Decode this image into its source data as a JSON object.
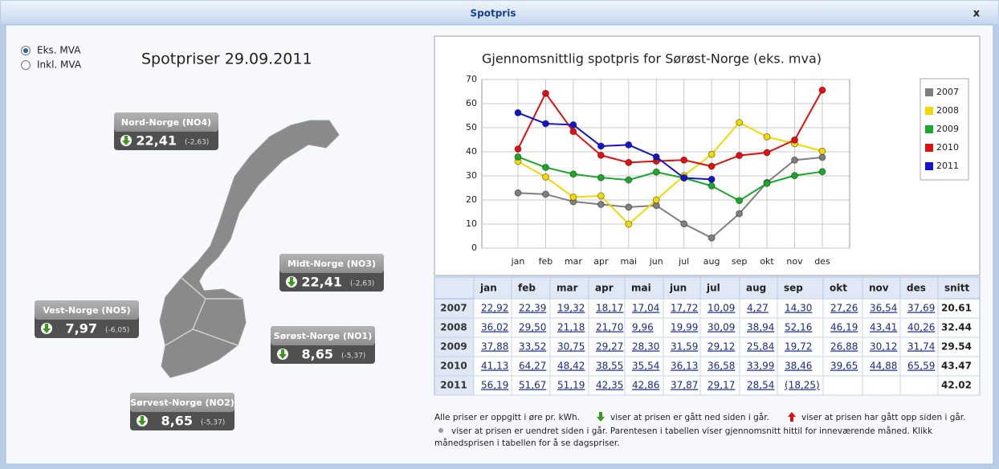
{
  "window": {
    "title": "Spotpris",
    "close": "x"
  },
  "vat_options": [
    {
      "label": "Eks. MVA",
      "selected": true
    },
    {
      "label": "Inkl. MVA",
      "selected": false
    }
  ],
  "map_title": "Spotpriser 29.09.2011",
  "regions": [
    {
      "name": "Nord-Norge (NO4)",
      "price": "22,41",
      "change": "(-2,63)",
      "trend": "down"
    },
    {
      "name": "Midt-Norge (NO3)",
      "price": "22,41",
      "change": "(-2,63)",
      "trend": "down"
    },
    {
      "name": "Vest-Norge (NO5)",
      "price": "7,97",
      "change": "(-6,05)",
      "trend": "down"
    },
    {
      "name": "Sørøst-Norge (NO1)",
      "price": "8,65",
      "change": "(-5,37)",
      "trend": "down"
    },
    {
      "name": "Sørvest-Norge (NO2)",
      "price": "8,65",
      "change": "(-5,37)",
      "trend": "down"
    }
  ],
  "chart_data": {
    "type": "line",
    "title": "Gjennomsnittlig spotpris for Sørøst-Norge (eks. mva)",
    "categories": [
      "jan",
      "feb",
      "mar",
      "apr",
      "mai",
      "jun",
      "jul",
      "aug",
      "sep",
      "okt",
      "nov",
      "des"
    ],
    "ylim": [
      0,
      70
    ],
    "yticks": [
      0,
      10,
      20,
      30,
      40,
      50,
      60,
      70
    ],
    "grid": true,
    "legend": "right",
    "series": [
      {
        "name": "2007",
        "color": "#7f7f7f",
        "values": [
          22.92,
          22.39,
          19.32,
          18.17,
          17.04,
          17.72,
          10.09,
          4.27,
          14.3,
          27.26,
          36.54,
          37.69
        ]
      },
      {
        "name": "2008",
        "color": "#f2d900",
        "values": [
          36.02,
          29.5,
          21.18,
          21.7,
          9.96,
          19.99,
          30.09,
          38.94,
          52.16,
          46.19,
          43.41,
          40.26
        ]
      },
      {
        "name": "2009",
        "color": "#1aa82a",
        "values": [
          37.88,
          33.52,
          30.75,
          29.27,
          28.3,
          31.59,
          29.12,
          25.84,
          19.72,
          26.88,
          30.12,
          31.74
        ]
      },
      {
        "name": "2010",
        "color": "#e01010",
        "values": [
          41.13,
          64.27,
          48.42,
          38.55,
          35.54,
          36.13,
          36.58,
          33.99,
          38.46,
          39.65,
          44.88,
          65.59
        ]
      },
      {
        "name": "2011",
        "color": "#1414c8",
        "values": [
          56.19,
          51.67,
          51.19,
          42.35,
          42.86,
          37.87,
          29.17,
          28.54,
          null,
          null,
          null,
          null
        ]
      }
    ]
  },
  "table": {
    "columns": [
      "jan",
      "feb",
      "mar",
      "apr",
      "mai",
      "jun",
      "jul",
      "aug",
      "sep",
      "okt",
      "nov",
      "des",
      "snitt"
    ],
    "rows": [
      {
        "year": "2007",
        "cells": [
          "22,92",
          "22,39",
          "19,32",
          "18,17",
          "17,04",
          "17,72",
          "10,09",
          "4,27",
          "14,30",
          "27,26",
          "36,54",
          "37,69"
        ],
        "avg": "20.61"
      },
      {
        "year": "2008",
        "cells": [
          "36,02",
          "29,50",
          "21,18",
          "21,70",
          "9,96",
          "19,99",
          "30,09",
          "38,94",
          "52,16",
          "46,19",
          "43,41",
          "40,26"
        ],
        "avg": "32.44"
      },
      {
        "year": "2009",
        "cells": [
          "37,88",
          "33,52",
          "30,75",
          "29,27",
          "28,30",
          "31,59",
          "29,12",
          "25,84",
          "19,72",
          "26,88",
          "30,12",
          "31,74"
        ],
        "avg": "29.54"
      },
      {
        "year": "2010",
        "cells": [
          "41,13",
          "64,27",
          "48,42",
          "38,55",
          "35,54",
          "36,13",
          "36,58",
          "33,99",
          "38,46",
          "39,65",
          "44,88",
          "65,59"
        ],
        "avg": "43.47"
      },
      {
        "year": "2011",
        "cells": [
          "56,19",
          "51,67",
          "51,19",
          "42,35",
          "42,86",
          "37,87",
          "29,17",
          "28,54",
          "(18,25)"
        ],
        "avg": "42.02"
      }
    ]
  },
  "footnote": {
    "units": "Alle priser er oppgitt i øre pr. kWh.",
    "down": "viser at prisen er gått ned siden i går.",
    "up": "viser at prisen har gått opp siden i går.",
    "same": "viser at prisen er uendret siden i går. Parentesen i tabellen viser gjennomsnitt hittil for inneværende måned. Klikk",
    "click": "månedsprisen i tabellen for å se dagspriser."
  }
}
